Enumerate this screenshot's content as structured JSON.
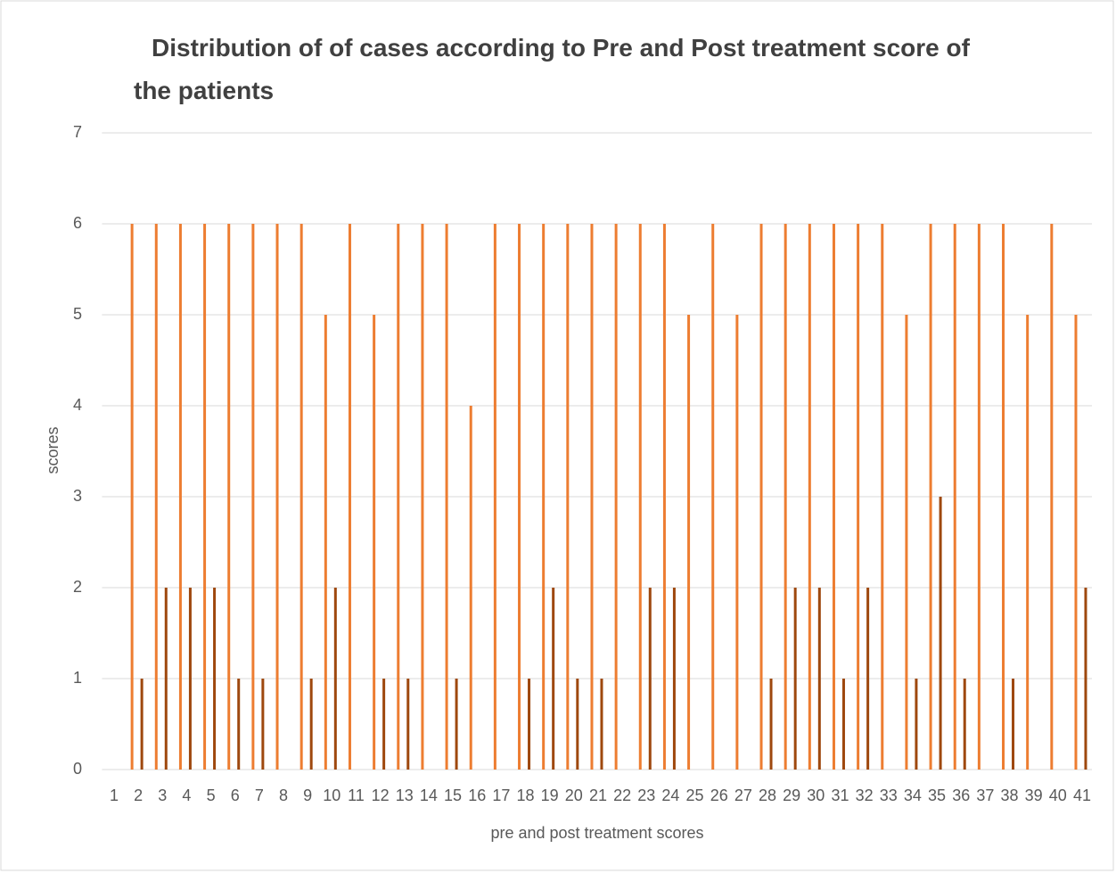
{
  "chart_data": {
    "type": "bar",
    "title": "Distribution of of cases according to Pre and Post treatment score of the patients",
    "x_label": "pre and post treatment scores",
    "y_label": "scores",
    "categories": [
      "1",
      "2",
      "3",
      "4",
      "5",
      "6",
      "7",
      "8",
      "9",
      "10",
      "11",
      "12",
      "13",
      "14",
      "15",
      "16",
      "17",
      "18",
      "19",
      "20",
      "21",
      "22",
      "23",
      "24",
      "25",
      "26",
      "27",
      "28",
      "29",
      "30",
      "31",
      "32",
      "33",
      "34",
      "35",
      "36",
      "37",
      "38",
      "39",
      "40",
      "41"
    ],
    "series": [
      {
        "color": "#ED7D31",
        "values": [
          null,
          6,
          6,
          6,
          6,
          6,
          6,
          6,
          6,
          5,
          6,
          5,
          6,
          6,
          6,
          4,
          6,
          6,
          6,
          6,
          6,
          6,
          6,
          6,
          5,
          6,
          5,
          6,
          6,
          6,
          6,
          6,
          6,
          5,
          6,
          6,
          6,
          6,
          5,
          6,
          5
        ]
      },
      {
        "color": "#9E480E",
        "values": [
          null,
          1,
          2,
          2,
          2,
          1,
          1,
          0,
          1,
          2,
          0,
          1,
          1,
          0,
          1,
          0,
          0,
          1,
          2,
          1,
          1,
          0,
          2,
          2,
          0,
          0,
          0,
          1,
          2,
          2,
          1,
          2,
          0,
          1,
          3,
          1,
          0,
          1,
          0,
          0,
          2
        ]
      }
    ],
    "ylim": [
      0,
      7
    ],
    "yticks": [
      0,
      1,
      2,
      3,
      4,
      5,
      6,
      7
    ],
    "grid": true
  }
}
